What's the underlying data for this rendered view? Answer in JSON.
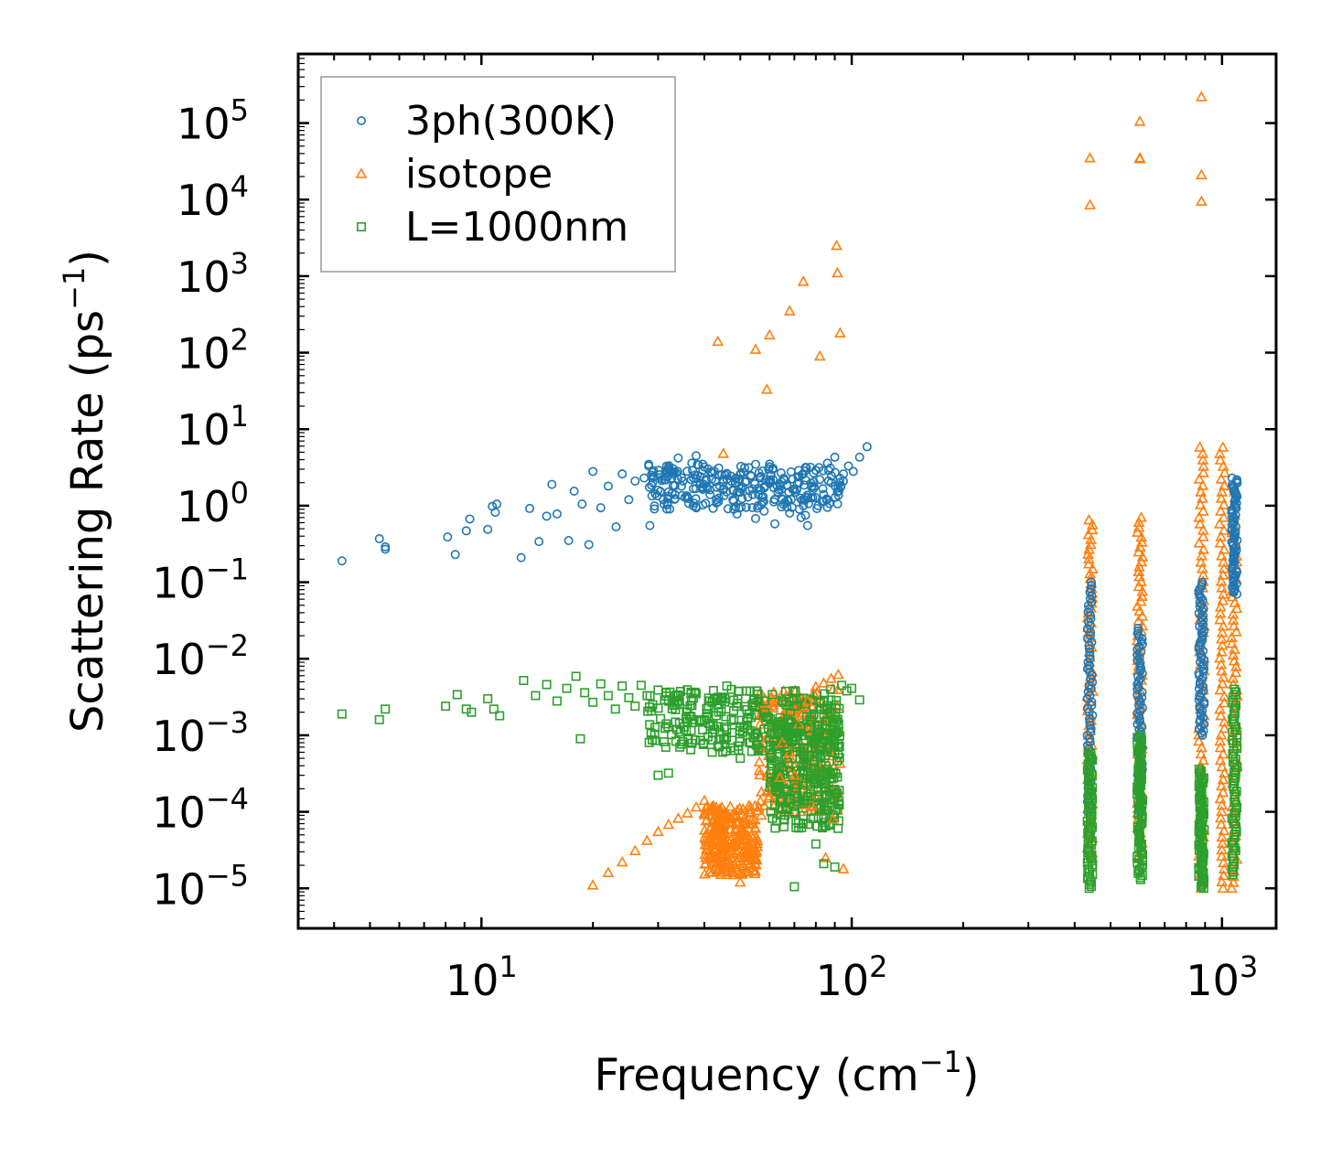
{
  "chart_data": {
    "type": "scatter",
    "xscale": "log",
    "yscale": "log",
    "xlabel": "Frequency (cm",
    "xlabel_sup": "−1",
    "xlabel_end": ")",
    "ylabel": "Scattering Rate (ps",
    "ylabel_sup": "−1",
    "ylabel_end": ")",
    "xlim": [
      3.2,
      1400
    ],
    "ylim": [
      3e-06,
      800000.0
    ],
    "legend_position": "top-left",
    "x_ticks": [
      {
        "value": 10,
        "base": "10",
        "exp": "1"
      },
      {
        "value": 100,
        "base": "10",
        "exp": "2"
      },
      {
        "value": 1000,
        "base": "10",
        "exp": "3"
      }
    ],
    "y_ticks": [
      {
        "value": 100000.0,
        "base": "10",
        "exp": "5"
      },
      {
        "value": 10000.0,
        "base": "10",
        "exp": "4"
      },
      {
        "value": 1000.0,
        "base": "10",
        "exp": "3"
      },
      {
        "value": 100.0,
        "base": "10",
        "exp": "2"
      },
      {
        "value": 10.0,
        "base": "10",
        "exp": "1"
      },
      {
        "value": 1.0,
        "base": "10",
        "exp": "0"
      },
      {
        "value": 0.1,
        "base": "10",
        "exp": "−1"
      },
      {
        "value": 0.01,
        "base": "10",
        "exp": "−2"
      },
      {
        "value": 0.001,
        "base": "10",
        "exp": "−3"
      },
      {
        "value": 0.0001,
        "base": "10",
        "exp": "−4"
      },
      {
        "value": 1e-05,
        "base": "10",
        "exp": "−5"
      }
    ],
    "series": [
      {
        "name": "3ph(300K)",
        "marker": "circle",
        "color": "#1f77b4",
        "x": [
          4.2,
          5.3,
          5.5,
          5.5,
          8.1,
          8.5,
          9.1,
          9.3,
          10.4,
          10.7,
          10.9,
          11.0,
          12.8,
          13.5,
          14.3,
          15.0,
          15.5,
          16.0,
          17.2,
          17.8,
          18.7,
          19.5,
          20.0,
          21.0,
          22.0,
          23.1,
          24.0,
          25.0,
          26.0,
          27.5,
          28.5,
          29.0,
          30.0,
          31.0,
          32.0,
          33.0,
          34.0,
          35.0,
          36.0,
          37.0,
          38.0,
          39.0,
          40.0,
          42.0,
          44.0,
          46.0,
          48.0,
          50.0,
          52.0,
          54.0,
          56.0,
          58.0,
          60.0,
          62.0,
          64.0,
          66.0,
          68.0,
          70.0,
          72.0,
          74.0,
          76.0,
          78.0,
          80.0,
          82.0,
          84.0,
          86.0,
          88.0,
          90.0,
          92.0,
          95.0,
          98.0,
          101.0,
          105.0,
          110.0,
          69.0,
          73.0,
          75.0,
          49.0,
          55.0,
          62.0
        ],
        "y": [
          0.19,
          0.37,
          0.27,
          0.29,
          0.39,
          0.23,
          0.47,
          0.67,
          0.49,
          0.98,
          0.82,
          1.05,
          0.21,
          0.92,
          0.34,
          0.73,
          1.9,
          0.78,
          0.35,
          1.55,
          1.05,
          0.31,
          2.8,
          0.94,
          1.8,
          0.53,
          2.6,
          1.2,
          2.1,
          2.3,
          0.55,
          2.0,
          1.6,
          1.2,
          3.0,
          2.6,
          4.2,
          2.1,
          1.3,
          3.6,
          4.5,
          2.4,
          3.2,
          2.7,
          1.8,
          2.2,
          0.9,
          1.5,
          2.1,
          1.4,
          1.7,
          0.85,
          3.5,
          1.2,
          1.9,
          1.1,
          0.8,
          1.6,
          2.4,
          1.0,
          0.55,
          1.8,
          2.9,
          2.2,
          1.4,
          3.6,
          2.0,
          4.3,
          1.7,
          2.6,
          3.3,
          2.8,
          4.3,
          5.9,
          0.95,
          0.7,
          0.75,
          0.78,
          0.68,
          0.58
        ]
      },
      {
        "name": "isotope",
        "marker": "triangle",
        "color": "#ff7f0e",
        "x": [
          43.5,
          45.0,
          55.0,
          59.0,
          60.0,
          68.0,
          74.0,
          82.0,
          91.0,
          91.5,
          93.0,
          440,
          440,
          600,
          600,
          600,
          880,
          880,
          880,
          20.0,
          22.0,
          24.0,
          26.0,
          28.0,
          30.0,
          32.0,
          34.0,
          36.0,
          38.0,
          40.0,
          42.0,
          44.0,
          45.0,
          46.0,
          48.0,
          50.0,
          52.0,
          54.0,
          57.0,
          60.0,
          64.0,
          68.0,
          72.0,
          76.0,
          80.0,
          84.0,
          88.0,
          92.0,
          95.0,
          89.0,
          85.0,
          78.0,
          70.0,
          65.0
        ],
        "y": [
          140,
          4.8,
          110,
          33,
          170,
          350,
          850,
          90,
          2500,
          1100,
          180,
          35000,
          8500,
          105000,
          35000,
          34000,
          220000,
          21000,
          9500,
          1.1e-05,
          1.6e-05,
          2.2e-05,
          3.1e-05,
          4.2e-05,
          5.5e-05,
          6.8e-05,
          8.2e-05,
          9.6e-05,
          0.000115,
          0.00014,
          0.00011,
          6.5e-05,
          4e-05,
          2.6e-05,
          1.6e-05,
          1.2e-05,
          2.3e-05,
          4.5e-05,
          9e-05,
          0.00016,
          0.00028,
          0.0006,
          0.0014,
          0.0028,
          0.0043,
          0.0048,
          0.0055,
          0.0062,
          1.8e-05,
          8e-05,
          2.5e-05,
          0.00012,
          0.0003,
          0.0008
        ]
      },
      {
        "name": "L=1000nm",
        "marker": "square",
        "color": "#2ca02c",
        "x": [
          4.2,
          5.3,
          5.5,
          8.0,
          8.6,
          9.1,
          9.4,
          10.4,
          10.8,
          11.2,
          13.0,
          14.0,
          15.0,
          16.0,
          17.0,
          18.0,
          19.0,
          20.0,
          21.0,
          22.0,
          23.0,
          24.0,
          25.0,
          26.0,
          27.0,
          28.0,
          29.0,
          30.0,
          32.0,
          34.0,
          36.0,
          38.0,
          40.0,
          42.0,
          44.0,
          46.0,
          48.0,
          50.0,
          52.0,
          55.0,
          58.0,
          61.0,
          64.0,
          67.0,
          70.0,
          73.0,
          76.0,
          79.0,
          82.0,
          85.0,
          88.0,
          91.0,
          94.0,
          97.0,
          100.0,
          105.0,
          18.5,
          30.0,
          32.0,
          42.0,
          50.0,
          70.0,
          84.0,
          90.0,
          76.0,
          80.0
        ],
        "y": [
          0.0019,
          0.0016,
          0.0022,
          0.0024,
          0.0034,
          0.0022,
          0.002,
          0.003,
          0.0022,
          0.0018,
          0.0052,
          0.0033,
          0.0046,
          0.0028,
          0.0041,
          0.0059,
          0.0036,
          0.0027,
          0.0047,
          0.0033,
          0.0022,
          0.0044,
          0.0031,
          0.0024,
          0.0045,
          0.0033,
          0.0025,
          0.0039,
          0.0028,
          0.0033,
          0.0022,
          0.0035,
          0.0016,
          0.0027,
          0.0011,
          0.0044,
          0.0021,
          0.0013,
          0.0038,
          0.0024,
          0.0012,
          0.0034,
          0.0017,
          0.0007,
          0.0024,
          0.0013,
          0.0003,
          0.0019,
          0.0011,
          0.0004,
          0.0009,
          0.0015,
          0.0045,
          0.0038,
          0.0041,
          0.0029,
          0.0009,
          0.0003,
          0.00032,
          0.0006,
          0.0005,
          1.05e-05,
          2.1e-05,
          1.9e-05,
          0.00014,
          3.8e-05
        ]
      }
    ],
    "vertical_bands": [
      {
        "series": "3ph(300K)",
        "x": [
          440,
          600,
          880,
          1080
        ],
        "y_low": [
          0.0001,
          0.0001,
          0.001,
          0.07
        ],
        "y_high": [
          0.1,
          0.025,
          0.1,
          2.3
        ]
      },
      {
        "series": "isotope",
        "x": [
          440,
          600,
          880,
          1000,
          1080
        ],
        "y_low": [
          2.5e-05,
          2.5e-05,
          1e-05,
          1e-05,
          1e-05
        ],
        "y_high": [
          0.65,
          0.7,
          5.8,
          5.8,
          1.8
        ]
      },
      {
        "series": "L=1000nm",
        "x": [
          440,
          600,
          880,
          1080
        ],
        "y_low": [
          1e-05,
          1.3e-05,
          1e-05,
          1.5e-05
        ],
        "y_high": [
          0.0006,
          0.001,
          0.00036,
          0.004
        ]
      }
    ],
    "dense_clusters": [
      {
        "series": "3ph(300K)",
        "x_from": 28,
        "x_to": 95,
        "y_low": 0.9,
        "y_high": 3.5
      },
      {
        "series": "isotope",
        "x_from": 56,
        "x_to": 93,
        "y_low": 0.0001,
        "y_high": 0.004
      },
      {
        "series": "isotope",
        "x_from": 40,
        "x_to": 56,
        "y_low": 1.5e-05,
        "y_high": 0.00012
      },
      {
        "series": "L=1000nm",
        "x_from": 28,
        "x_to": 93,
        "y_low": 0.0006,
        "y_high": 0.004
      },
      {
        "series": "L=1000nm",
        "x_from": 60,
        "x_to": 93,
        "y_low": 6e-05,
        "y_high": 0.0015
      }
    ]
  }
}
